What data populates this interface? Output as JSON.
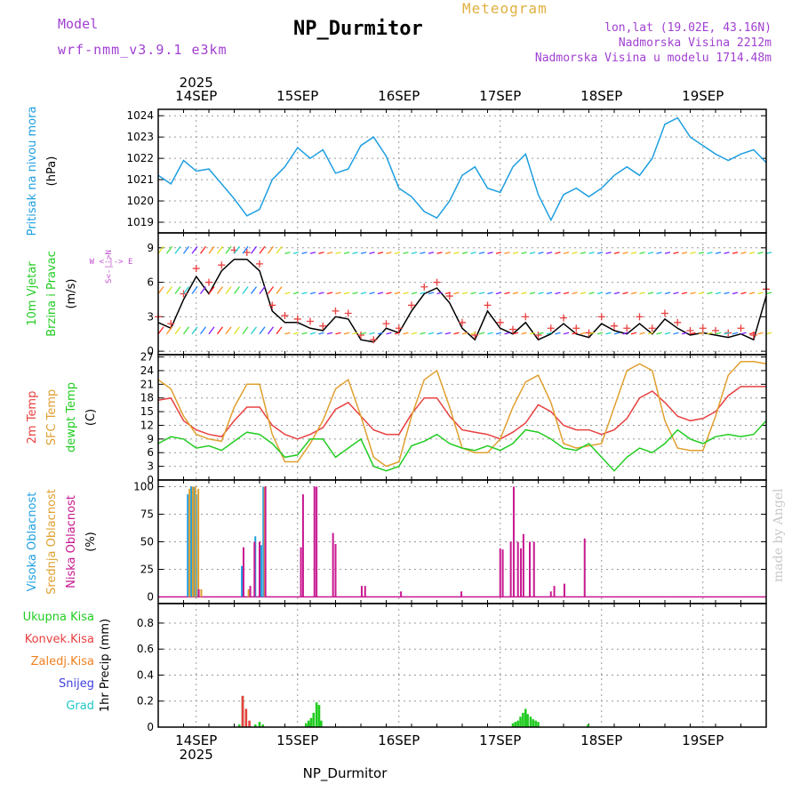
{
  "header": {
    "model_label": "Model",
    "model_name": "wrf-nmm_v3.9.1 e3km",
    "product": "Meteogram",
    "station": "NP_Durmitor",
    "lonlat": "lon,lat (19.02E, 43.16N)",
    "elevation": "Nadmorska Visina 2212m",
    "model_elevation": "Nadmorska Visina u modelu 1714.48m",
    "footer_station": "NP_Durmitor",
    "made_by": "made by Angel"
  },
  "colors": {
    "pressure": "#1e9fe0",
    "wind_label": "#22cc22",
    "wind_axis": "#c050d0",
    "t2m": "#e84040",
    "sfc": "#e0a030",
    "dewpt": "#22cc22",
    "high_cloud": "#1e9fe0",
    "mid_cloud": "#e0a030",
    "low_cloud": "#c81890",
    "total_precip": "#22cc22",
    "conv_precip": "#e84040",
    "frozen": "#f08020",
    "snow": "#4040e0",
    "hail": "#20c8c8"
  },
  "chart_data": {
    "type": "meteogram",
    "time": {
      "year": "2025",
      "start": "2025-09-13T15:00",
      "unit": "hours",
      "range": [
        0,
        144
      ],
      "day_ticks": [
        {
          "hour": 9,
          "label": "14SEP"
        },
        {
          "hour": 33,
          "label": "15SEP"
        },
        {
          "hour": 57,
          "label": "16SEP"
        },
        {
          "hour": 81,
          "label": "17SEP"
        },
        {
          "hour": 105,
          "label": "18SEP"
        },
        {
          "hour": 129,
          "label": "19SEP"
        }
      ]
    },
    "panels": [
      {
        "id": "pressure",
        "ylabel": [
          "Pritisak na nivou mora",
          "(hPa)"
        ],
        "ylim": [
          1018.5,
          1024.3
        ],
        "yticks": [
          "1019",
          "1020",
          "1021",
          "1022",
          "1023",
          "1024"
        ],
        "series": [
          {
            "name": "MSLP",
            "color": "#1e9fe0",
            "x": [
              0,
              3,
              6,
              9,
              12,
              15,
              18,
              21,
              24,
              27,
              30,
              33,
              36,
              39,
              42,
              45,
              48,
              51,
              54,
              57,
              60,
              63,
              66,
              69,
              72,
              75,
              78,
              81,
              84,
              87,
              90,
              93,
              96,
              99,
              102,
              105,
              108,
              111,
              114,
              117,
              120,
              123,
              126,
              129,
              132,
              135,
              138,
              141,
              144
            ],
            "y": [
              1021.2,
              1020.8,
              1021.9,
              1021.4,
              1021.5,
              1020.8,
              1020.1,
              1019.3,
              1019.6,
              1021.0,
              1021.6,
              1022.5,
              1022.0,
              1022.4,
              1021.3,
              1021.5,
              1022.6,
              1023.0,
              1022.1,
              1020.6,
              1020.2,
              1019.5,
              1019.2,
              1020.0,
              1021.2,
              1021.6,
              1020.6,
              1020.4,
              1021.6,
              1022.2,
              1020.3,
              1019.1,
              1020.3,
              1020.6,
              1020.2,
              1020.6,
              1021.2,
              1021.6,
              1021.2,
              1022.0,
              1023.6,
              1023.9,
              1023.0,
              1022.6,
              1022.2,
              1021.9,
              1022.2,
              1022.4,
              1021.8
            ]
          }
        ]
      },
      {
        "id": "wind",
        "ylabel": [
          "10m Vjetar",
          "Brzina i Pravac",
          "(m/s)"
        ],
        "ylim": [
          -0.3,
          10.3
        ],
        "yticks": [
          "0",
          "3",
          "6",
          "9"
        ],
        "compass": [
          "N",
          "W",
          "E",
          "S"
        ],
        "series": [
          {
            "name": "wind speed",
            "color": "#000000",
            "x": [
              0,
              3,
              6,
              9,
              12,
              15,
              18,
              21,
              24,
              27,
              30,
              33,
              36,
              39,
              42,
              45,
              48,
              51,
              54,
              57,
              60,
              63,
              66,
              69,
              72,
              75,
              78,
              81,
              84,
              87,
              90,
              93,
              96,
              99,
              102,
              105,
              108,
              111,
              114,
              117,
              120,
              123,
              126,
              129,
              132,
              135,
              138,
              141,
              144
            ],
            "y": [
              2.5,
              2.0,
              4.5,
              6.5,
              5.0,
              7.0,
              8.0,
              8.0,
              7.0,
              3.5,
              2.5,
              2.5,
              2.0,
              1.8,
              3.0,
              2.8,
              1.0,
              0.8,
              2.0,
              1.6,
              3.5,
              5.0,
              5.5,
              4.2,
              2.0,
              1.0,
              3.5,
              2.0,
              1.5,
              2.5,
              1.0,
              1.5,
              2.4,
              1.5,
              1.2,
              2.4,
              1.8,
              1.5,
              2.4,
              1.5,
              2.8,
              2.0,
              1.4,
              1.6,
              1.4,
              1.2,
              1.5,
              1.0,
              4.8
            ]
          },
          {
            "name": "gusts",
            "color": "#e84040",
            "x": [
              0,
              3,
              6,
              9,
              12,
              15,
              18,
              21,
              24,
              27,
              30,
              33,
              36,
              39,
              42,
              45,
              48,
              51,
              54,
              57,
              60,
              63,
              66,
              69,
              72,
              75,
              78,
              81,
              84,
              87,
              90,
              93,
              96,
              99,
              102,
              105,
              108,
              111,
              114,
              117,
              120,
              123,
              126,
              129,
              132,
              135,
              138,
              141,
              144
            ],
            "y": [
              3.0,
              2.4,
              5.0,
              7.2,
              6.0,
              7.5,
              8.8,
              8.6,
              7.6,
              4.0,
              3.1,
              2.8,
              2.6,
              2.2,
              3.5,
              3.3,
              1.4,
              1.0,
              2.4,
              2.0,
              4.0,
              5.6,
              6.0,
              4.8,
              2.5,
              1.4,
              4.0,
              2.5,
              1.9,
              3.0,
              1.4,
              2.0,
              2.9,
              2.0,
              1.6,
              3.0,
              2.2,
              2.0,
              3.0,
              2.0,
              3.3,
              2.5,
              1.8,
              2.0,
              1.8,
              1.6,
              2.0,
              1.4,
              5.4
            ]
          }
        ]
      },
      {
        "id": "temperature",
        "ylabel": [
          "2m Temp",
          "SFC Temp",
          "dewpt Temp",
          "(C)"
        ],
        "ylim": [
          0,
          27.5
        ],
        "yticks": [
          "0",
          "3",
          "6",
          "9",
          "12",
          "15",
          "18",
          "21",
          "24",
          "27"
        ],
        "series": [
          {
            "name": "2m Temp",
            "color": "#e84040",
            "x": [
              0,
              3,
              6,
              9,
              12,
              15,
              18,
              21,
              24,
              27,
              30,
              33,
              36,
              39,
              42,
              45,
              48,
              51,
              54,
              57,
              60,
              63,
              66,
              69,
              72,
              75,
              78,
              81,
              84,
              87,
              90,
              93,
              96,
              99,
              102,
              105,
              108,
              111,
              114,
              117,
              120,
              123,
              126,
              129,
              132,
              135,
              138,
              141,
              144
            ],
            "y": [
              17.5,
              18.0,
              13.0,
              11.0,
              10.0,
              9.5,
              13.0,
              16.0,
              16.0,
              12.0,
              10.0,
              9.0,
              10.0,
              11.5,
              15.5,
              17.0,
              14.0,
              11.0,
              10.0,
              10.0,
              14.5,
              18.0,
              18.0,
              14.0,
              11.0,
              10.5,
              10.0,
              9.0,
              10.5,
              12.5,
              16.5,
              15.0,
              12.0,
              11.0,
              11.0,
              10.0,
              11.0,
              13.5,
              18.0,
              19.5,
              17.0,
              14.0,
              13.0,
              13.5,
              15.0,
              18.5,
              20.5,
              20.5,
              20.5
            ]
          },
          {
            "name": "SFC Temp",
            "color": "#e0a030",
            "x": [
              0,
              3,
              6,
              9,
              12,
              15,
              18,
              21,
              24,
              27,
              30,
              33,
              36,
              39,
              42,
              45,
              48,
              51,
              54,
              57,
              60,
              63,
              66,
              69,
              72,
              75,
              78,
              81,
              84,
              87,
              90,
              93,
              96,
              99,
              102,
              105,
              108,
              111,
              114,
              117,
              120,
              123,
              126,
              129,
              132,
              135,
              138,
              141,
              144
            ],
            "y": [
              22.0,
              20.0,
              14.0,
              10.0,
              9.0,
              8.5,
              16.0,
              21.0,
              21.0,
              10.0,
              4.0,
              4.0,
              8.0,
              13.0,
              20.0,
              22.0,
              14.0,
              5.0,
              3.0,
              4.0,
              14.0,
              22.0,
              24.0,
              16.0,
              7.0,
              6.0,
              6.0,
              9.0,
              16.0,
              21.5,
              23.0,
              17.0,
              8.0,
              7.0,
              7.5,
              8.0,
              16.0,
              24.0,
              25.5,
              24.0,
              13.0,
              7.0,
              6.5,
              6.5,
              14.0,
              23.0,
              26.0,
              26.0,
              25.5
            ]
          },
          {
            "name": "dewpt Temp",
            "color": "#22cc22",
            "x": [
              0,
              3,
              6,
              9,
              12,
              15,
              18,
              21,
              24,
              27,
              30,
              33,
              36,
              39,
              42,
              45,
              48,
              51,
              54,
              57,
              60,
              63,
              66,
              69,
              72,
              75,
              78,
              81,
              84,
              87,
              90,
              93,
              96,
              99,
              102,
              105,
              108,
              111,
              114,
              117,
              120,
              123,
              126,
              129,
              132,
              135,
              138,
              141,
              144
            ],
            "y": [
              8.0,
              9.5,
              9.0,
              7.0,
              7.5,
              6.5,
              8.5,
              10.5,
              10.0,
              8.0,
              5.0,
              5.5,
              9.0,
              9.0,
              5.0,
              7.0,
              9.0,
              3.0,
              2.0,
              3.0,
              7.5,
              8.5,
              10.0,
              8.0,
              7.0,
              6.5,
              7.5,
              6.5,
              8.0,
              11.0,
              10.5,
              9.0,
              7.0,
              6.5,
              8.0,
              5.0,
              2.0,
              5.0,
              7.0,
              6.0,
              8.0,
              11.0,
              9.0,
              8.0,
              9.5,
              10.0,
              9.5,
              10.0,
              13.0
            ]
          }
        ]
      },
      {
        "id": "clouds",
        "ylabel": [
          "Visoka Oblacnost",
          "Srednja Oblacnost",
          "Niska Oblacnost",
          "(%)"
        ],
        "ylim": [
          -6,
          106
        ],
        "yticks": [
          "0",
          "25",
          "50",
          "75",
          "100"
        ],
        "series": [
          {
            "name": "Visoka Oblacnost",
            "color": "#1e9fe0",
            "x": [
              7.0,
              7.8,
              8.4,
              9.0,
              19.8,
              23.0,
              24.4,
              24.9
            ],
            "y": [
              93,
              100,
              100,
              93,
              28,
              55,
              47,
              100
            ]
          },
          {
            "name": "Srednja Oblacnost",
            "color": "#e0a030",
            "x": [
              7.4,
              8.2,
              8.8,
              9.5,
              10.2,
              21.4,
              24.0,
              25.2
            ],
            "y": [
              98,
              100,
              100,
              98,
              7,
              7,
              48,
              100
            ]
          },
          {
            "name": "Niska Oblacnost",
            "color": "#c81890",
            "x": [
              9.6,
              20.2,
              21.8,
              22.8,
              24.0,
              25.4,
              33.8,
              34.3,
              37.0,
              37.5,
              41.4,
              42.0,
              48.2,
              49.0,
              57.5,
              71.8,
              81.0,
              81.6,
              83.5,
              84.2,
              85.2,
              85.9,
              86.5,
              88.0,
              89.0,
              93.0,
              93.8,
              96.2,
              101.0
            ],
            "y": [
              7,
              45,
              10,
              50,
              50,
              100,
              45,
              93,
              100,
              100,
              58,
              48,
              10,
              10,
              5,
              5,
              44,
              43,
              50,
              100,
              50,
              44,
              57,
              50,
              50,
              5,
              10,
              12,
              53
            ]
          }
        ]
      },
      {
        "id": "precip",
        "ylabel": [
          "Ukupna Kisa",
          "Konvek.Kisa",
          "Zaledj.Kisa",
          "Snijeg",
          "Grad",
          "1hr Precip (mm)"
        ],
        "ylim": [
          0,
          0.95
        ],
        "yticks": [
          "0",
          "0.2",
          "0.4",
          "0.6",
          "0.8"
        ],
        "series": [
          {
            "name": "Ukupna Kisa",
            "color": "#22cc22",
            "x": [
              19.2,
              20.0,
              20.8,
              23.0,
              24.0,
              24.8,
              35.0,
              35.6,
              36.2,
              36.8,
              37.5,
              38.1,
              38.6,
              84.0,
              84.6,
              85.2,
              85.8,
              86.4,
              87.0,
              87.5,
              88.2,
              88.8,
              89.4,
              90.0,
              101.8
            ],
            "y": [
              0.02,
              0.24,
              0.14,
              0.02,
              0.04,
              0.02,
              0.03,
              0.05,
              0.07,
              0.11,
              0.19,
              0.17,
              0.05,
              0.03,
              0.04,
              0.05,
              0.08,
              0.11,
              0.14,
              0.1,
              0.08,
              0.06,
              0.05,
              0.04,
              0.02
            ]
          },
          {
            "name": "Konvek.Kisa",
            "color": "#e84040",
            "x": [
              20.0,
              20.8,
              21.6
            ],
            "y": [
              0.24,
              0.14,
              0.05
            ]
          },
          {
            "name": "Zaledj.Kisa",
            "color": "#f08020",
            "x": [],
            "y": []
          },
          {
            "name": "Snijeg",
            "color": "#4040e0",
            "x": [],
            "y": []
          },
          {
            "name": "Grad",
            "color": "#20c8c8",
            "x": [],
            "y": []
          }
        ]
      }
    ]
  }
}
